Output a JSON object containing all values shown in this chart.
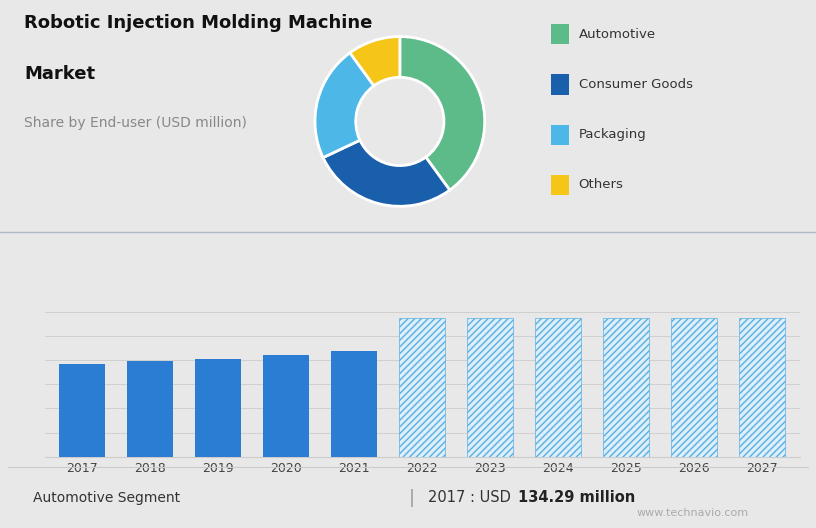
{
  "title_line1": "Robotic Injection Molding Machine",
  "title_line2": "Market",
  "subtitle": "Share by End-user (USD million)",
  "bg_top": "#cdd5e0",
  "bg_bottom": "#e8e8e8",
  "pie_data": [
    40,
    28,
    22,
    10
  ],
  "pie_labels": [
    "Automotive",
    "Consumer Goods",
    "Packaging",
    "Others"
  ],
  "pie_colors": [
    "#5dbb8a",
    "#1a5fab",
    "#4db8e8",
    "#f5c518"
  ],
  "bar_years_solid": [
    2017,
    2018,
    2019,
    2020,
    2021
  ],
  "bar_values_solid": [
    134,
    138,
    142,
    147,
    153
  ],
  "bar_years_hatched": [
    2022,
    2023,
    2024,
    2025,
    2026,
    2027
  ],
  "bar_values_hatched": [
    200,
    200,
    200,
    200,
    200,
    200
  ],
  "bar_color_solid": "#2b7dd4",
  "bar_color_hatched_face": "#dceefa",
  "bar_color_hatched_edge": "#5ab0e0",
  "footer_left": "Automotive Segment",
  "footer_right_plain": "2017 : USD ",
  "footer_right_bold": "134.29 million",
  "watermark": "www.technavio.com"
}
